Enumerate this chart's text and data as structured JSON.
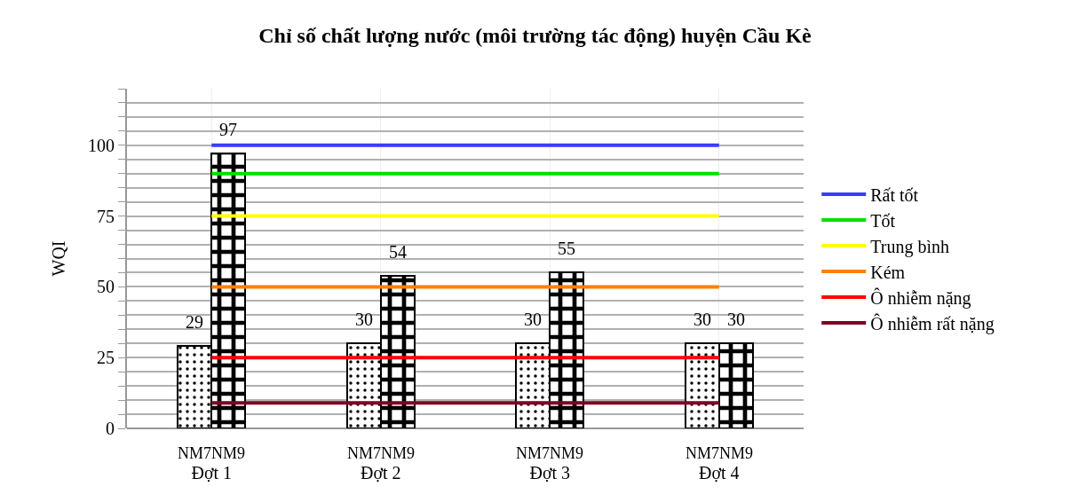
{
  "chart_data": {
    "type": "bar",
    "title": "Chỉ số chất lượng nước (môi trường tác động) huyện Cầu Kè",
    "ylabel": "WQI",
    "categories": [
      "Đợt 1",
      "Đợt 2",
      "Đợt 3",
      "Đợt 4"
    ],
    "series": [
      {
        "name": "NM7",
        "color": "#000000",
        "values": [
          29,
          30,
          30,
          30
        ],
        "value_labels": [
          "29",
          "30",
          "30",
          "30"
        ]
      },
      {
        "name": "NM9",
        "color": "#000000",
        "values": [
          97,
          54,
          55,
          30
        ],
        "value_labels": [
          "97",
          "54",
          "55",
          "30"
        ]
      },
      {
        "name": "Rất tốt",
        "type": "line",
        "color": "#3b3bff",
        "values": [
          100,
          100,
          100,
          100
        ]
      },
      {
        "name": "Tốt",
        "type": "line",
        "color": "#00e000",
        "values": [
          90,
          90,
          90,
          90
        ]
      },
      {
        "name": "Trung bình",
        "type": "line",
        "color": "#ffff00",
        "values": [
          75,
          75,
          75,
          75
        ]
      },
      {
        "name": "Kém",
        "type": "line",
        "color": "#ff8000",
        "values": [
          50,
          50,
          50,
          50
        ]
      },
      {
        "name": "Ô nhiễm nặng",
        "type": "line",
        "color": "#ff0000",
        "values": [
          25,
          25,
          25,
          25
        ]
      },
      {
        "name": "Ô nhiễm rất nặng",
        "type": "line",
        "color": "#800020",
        "values": [
          9,
          9,
          9,
          9
        ]
      }
    ],
    "ylim": [
      0,
      120
    ],
    "yticks": [
      0,
      {
        "value": 5,
        "label": null
      },
      {
        "value": 10,
        "label": null
      },
      {
        "value": 15,
        "label": null
      },
      {
        "value": 20,
        "label": null
      },
      25,
      {
        "value": 30,
        "label": null
      },
      {
        "value": 35,
        "label": null
      },
      {
        "value": 40,
        "label": null
      },
      {
        "value": 45,
        "label": null
      },
      50,
      {
        "value": 55,
        "label": null
      },
      {
        "value": 60,
        "label": null
      },
      {
        "value": 65,
        "label": null
      },
      {
        "value": 70,
        "label": null
      },
      75,
      {
        "value": 80,
        "label": null
      },
      {
        "value": 85,
        "label": null
      },
      {
        "value": 90,
        "label": null
      },
      {
        "value": 95,
        "label": null
      },
      100,
      {
        "value": 105,
        "label": null
      },
      {
        "value": 110,
        "label": null
      },
      {
        "value": 115,
        "label": null
      },
      {
        "value": 120,
        "label": null
      }
    ],
    "grid": true,
    "legend": "right",
    "marker": "none",
    "line_style": "solid"
  }
}
